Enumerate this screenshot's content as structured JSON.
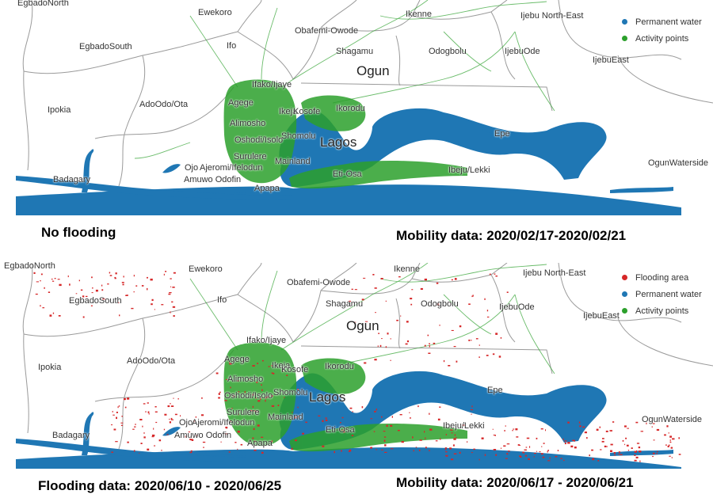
{
  "panels": [
    {
      "places": [
        "EgbadoNorth",
        "Ewekoro",
        "Ikenne",
        "Ijebu North-East",
        "EgbadoSouth",
        "Ifo",
        "Obafemi-Owode",
        "Shagamu",
        "Odogbolu",
        "IjebuOde",
        "IjebuEast",
        "Ogun",
        "Ifako/Ijaye",
        "Ipokia",
        "AdoOdo/Ota",
        "Agege",
        "Ikeja",
        "Kosofe",
        "Ikorodu",
        "Alimosho",
        "Oshodi/Isolo",
        "Shomolu",
        "Lagos",
        "Epe",
        "Surulere",
        "Ojo",
        "Ajeromi/Ifelodun",
        "Mainland",
        "Eti-Osa",
        "Ibeju/Lekki",
        "OgunWaterside",
        "Badagary",
        "Amuwo Odofin",
        "Apapa"
      ],
      "legend": [
        {
          "label": "Permanent water",
          "color": "#1f77b4"
        },
        {
          "label": "Activity points",
          "color": "#2ca02c"
        }
      ],
      "captions": {
        "left": "No flooding",
        "right": "Mobility data: 2020/02/17-2020/02/21"
      }
    },
    {
      "places": [
        "EgbadoNorth",
        "Ewekoro",
        "Ikenne",
        "Ijebu North-East",
        "EgbadoSouth",
        "Ifo",
        "Obafemi-Owode",
        "Shagamu",
        "Odogbolu",
        "IjebuOde",
        "IjebuEast",
        "Ogun",
        "Ifako/Ijaye",
        "Ipokia",
        "AdoOdo/Ota",
        "Agege",
        "Ikeja",
        "Kosofe",
        "Ikorodu",
        "Alimosho",
        "Oshodi/Isolo",
        "Shomolu",
        "Lagos",
        "Epe",
        "Surulere",
        "Ojo",
        "Ajeromi/Ifelodun",
        "Mainland",
        "Eti-Osa",
        "Ibeju/Lekki",
        "OgunWaterside",
        "Badagary",
        "Amuwo Odofin",
        "Apapa"
      ],
      "legend": [
        {
          "label": "Flooding area",
          "color": "#d62728"
        },
        {
          "label": "Permanent water",
          "color": "#1f77b4"
        },
        {
          "label": "Activity points",
          "color": "#2ca02c"
        }
      ],
      "captions": {
        "left": "Flooding data: 2020/06/10 - 2020/06/25",
        "right": "Mobility data: 2020/06/17 - 2020/06/21"
      }
    }
  ]
}
